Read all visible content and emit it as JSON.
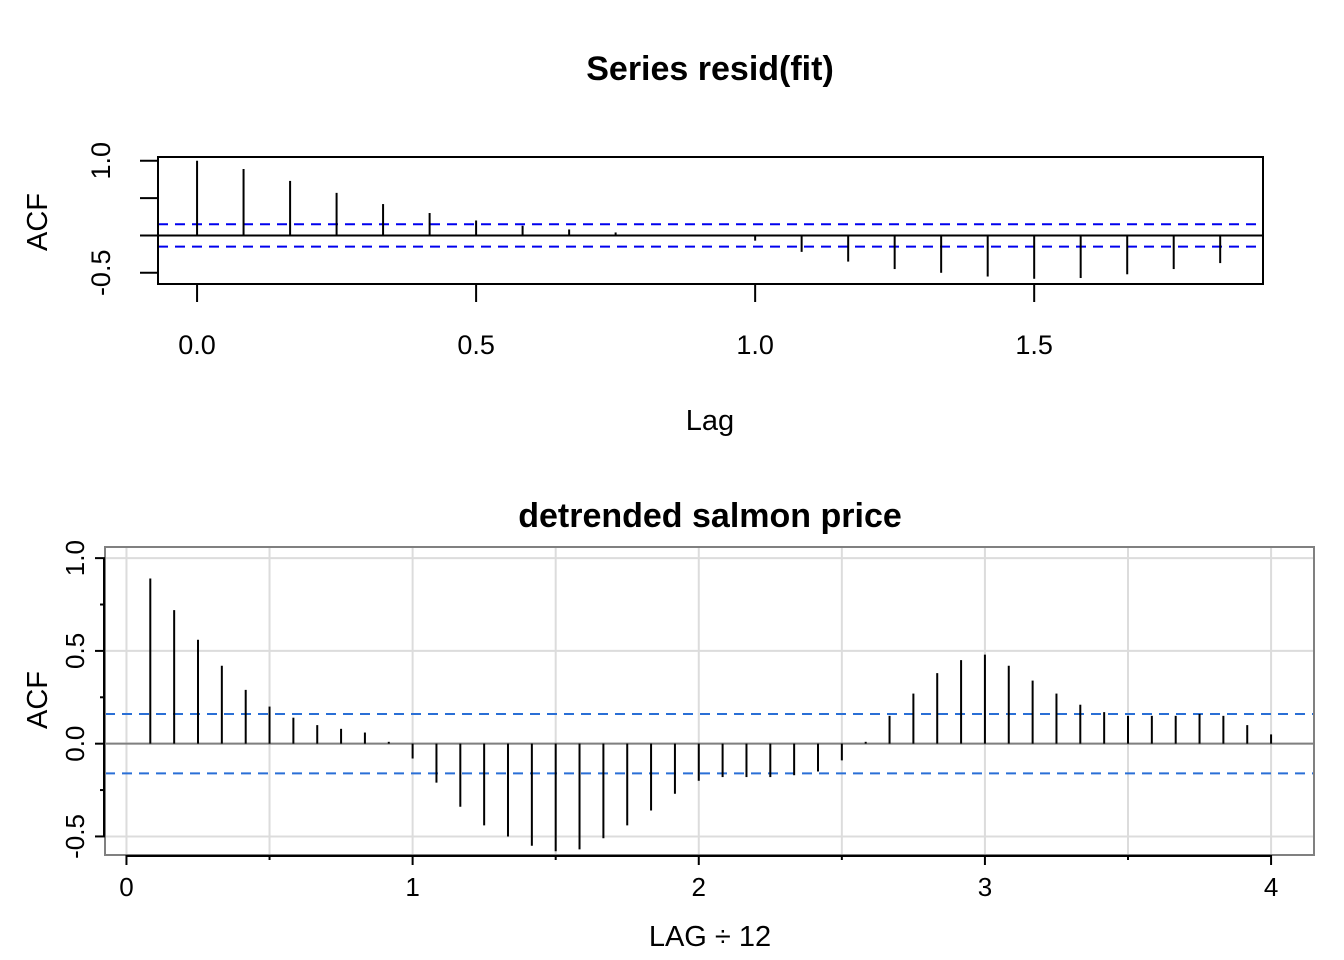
{
  "chart_data": [
    {
      "type": "bar",
      "title": "Series  resid(fit)",
      "xlabel": "Lag",
      "ylabel": "ACF",
      "xlim": [
        -0.07,
        1.91
      ],
      "ylim": [
        -0.65,
        1.05
      ],
      "xticks": [
        0.0,
        0.5,
        1.0,
        1.5
      ],
      "xtick_labels": [
        "0.0",
        "0.5",
        "1.0",
        "1.5"
      ],
      "yticks": [
        -0.5,
        0.0,
        0.5,
        1.0
      ],
      "ytick_labels": [
        "-0.5",
        "",
        "",
        "1.0"
      ],
      "ci": 0.15,
      "grid": false,
      "x": [
        0.0,
        0.0833,
        0.1667,
        0.25,
        0.3333,
        0.4167,
        0.5,
        0.5833,
        0.6667,
        0.75,
        0.8333,
        0.9167,
        1.0,
        1.0833,
        1.1667,
        1.25,
        1.3333,
        1.4167,
        1.5,
        1.5833,
        1.6667,
        1.75,
        1.8333
      ],
      "values": [
        1.0,
        0.89,
        0.73,
        0.57,
        0.42,
        0.3,
        0.2,
        0.13,
        0.08,
        0.04,
        0.01,
        -0.01,
        -0.07,
        -0.22,
        -0.35,
        -0.45,
        -0.5,
        -0.55,
        -0.58,
        -0.57,
        -0.52,
        -0.45,
        -0.37
      ],
      "colors": {
        "bars": "#000000",
        "ci": "#0000ee",
        "zero": "#000000"
      }
    },
    {
      "type": "bar",
      "title": "detrended salmon price",
      "xlabel": "LAG ÷ 12",
      "ylabel": "ACF",
      "xlim": [
        -0.075,
        4.15
      ],
      "ylim": [
        -0.6,
        1.06
      ],
      "xticks": [
        0,
        1,
        2,
        3,
        4
      ],
      "xtick_labels": [
        "0",
        "1",
        "2",
        "3",
        "4"
      ],
      "yticks": [
        -0.5,
        0.0,
        0.5,
        1.0
      ],
      "ytick_labels": [
        "-0.5",
        "0.0",
        "0.5",
        "1.0"
      ],
      "ci": 0.16,
      "grid": true,
      "x": [
        0.0833,
        0.1667,
        0.25,
        0.3333,
        0.4167,
        0.5,
        0.5833,
        0.6667,
        0.75,
        0.8333,
        0.9167,
        1.0,
        1.0833,
        1.1667,
        1.25,
        1.3333,
        1.4167,
        1.5,
        1.5833,
        1.6667,
        1.75,
        1.8333,
        1.9167,
        2.0,
        2.0833,
        2.1667,
        2.25,
        2.3333,
        2.4167,
        2.5,
        2.5833,
        2.6667,
        2.75,
        2.8333,
        2.9167,
        3.0,
        3.0833,
        3.1667,
        3.25,
        3.3333,
        3.4167,
        3.5,
        3.5833,
        3.6667,
        3.75,
        3.8333,
        3.9167,
        4.0
      ],
      "values": [
        0.89,
        0.72,
        0.56,
        0.42,
        0.29,
        0.2,
        0.14,
        0.1,
        0.08,
        0.06,
        0.01,
        -0.08,
        -0.21,
        -0.34,
        -0.44,
        -0.5,
        -0.55,
        -0.58,
        -0.57,
        -0.51,
        -0.44,
        -0.36,
        -0.27,
        -0.2,
        -0.18,
        -0.18,
        -0.18,
        -0.17,
        -0.15,
        -0.09,
        0.01,
        0.15,
        0.27,
        0.38,
        0.45,
        0.48,
        0.42,
        0.34,
        0.27,
        0.21,
        0.17,
        0.15,
        0.15,
        0.15,
        0.16,
        0.15,
        0.1,
        0.05
      ],
      "colors": {
        "bars": "#000000",
        "ci": "#2a6fd6",
        "zero": "#808080",
        "grid": "#dcdcdc",
        "frame": "#808080"
      }
    }
  ]
}
